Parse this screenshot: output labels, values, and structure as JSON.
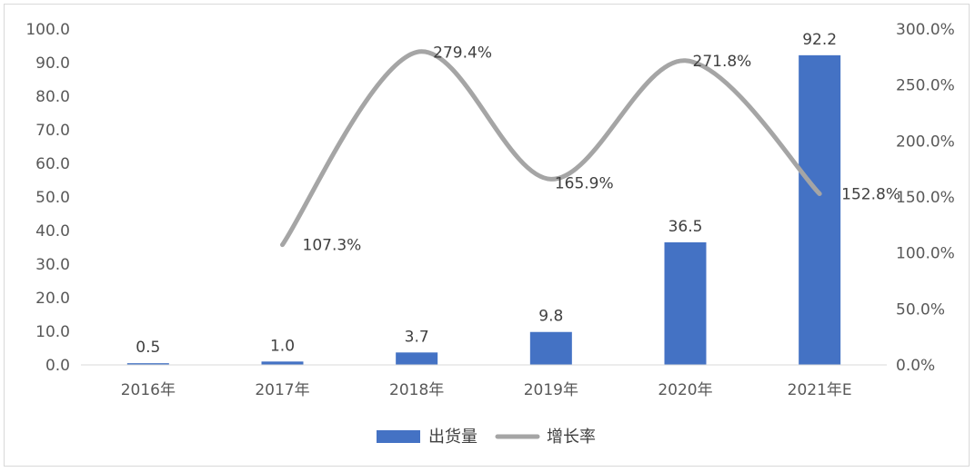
{
  "chart_data": {
    "type": "bar",
    "categories": [
      "2016年",
      "2017年",
      "2018年",
      "2019年",
      "2020年",
      "2021年E"
    ],
    "series": [
      {
        "name": "出货量",
        "type": "bar",
        "axis": "left",
        "values": [
          0.5,
          1.0,
          3.7,
          9.8,
          36.5,
          92.2
        ],
        "labels": [
          "0.5",
          "1.0",
          "3.7",
          "9.8",
          "36.5",
          "92.2"
        ]
      },
      {
        "name": "增长率",
        "type": "line",
        "axis": "right",
        "smooth": true,
        "values": [
          null,
          107.3,
          279.4,
          165.9,
          271.8,
          152.8
        ],
        "labels": [
          "",
          "107.3%",
          "279.4%",
          "165.9%",
          "271.8%",
          "152.8%"
        ]
      }
    ],
    "y_left": {
      "range": [
        0,
        100
      ],
      "ticks": [
        "0.0",
        "10.0",
        "20.0",
        "30.0",
        "40.0",
        "50.0",
        "60.0",
        "70.0",
        "80.0",
        "90.0",
        "100.0"
      ]
    },
    "y_right": {
      "range": [
        0,
        300
      ],
      "ticks": [
        "0.0%",
        "50.0%",
        "100.0%",
        "150.0%",
        "200.0%",
        "250.0%",
        "300.0%"
      ]
    },
    "grid": false,
    "legend_position": "bottom",
    "colors": {
      "bar": "#4472c4",
      "line": "#a5a5a5",
      "axis": "#d9d9d9",
      "text": "#595959"
    }
  }
}
